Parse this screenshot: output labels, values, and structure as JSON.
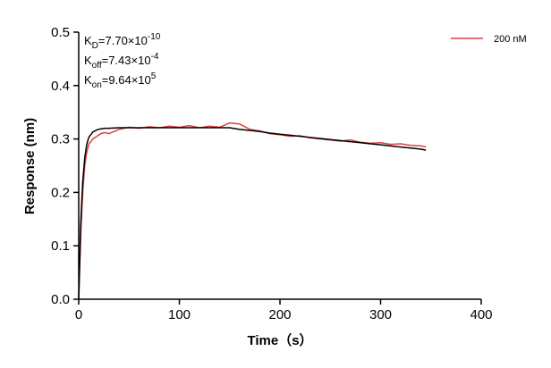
{
  "chart_data": {
    "type": "line",
    "x_label": "Time（s）",
    "y_label": "Response (nm)",
    "xlim": [
      0,
      400
    ],
    "ylim": [
      0,
      0.5
    ],
    "xticks": [
      0,
      100,
      200,
      300,
      400
    ],
    "yticks": [
      {
        "value": 0,
        "label": "0.0"
      },
      0.1,
      0.2,
      0.3,
      0.4,
      0.5
    ],
    "legend": "top-right",
    "annotations": [
      {
        "base": "K",
        "sub": "D",
        "text": "=7.70×10",
        "sup": "-10"
      },
      {
        "base": "K",
        "sub": "off",
        "text": "=7.43×10",
        "sup": "-4"
      },
      {
        "base": "K",
        "sub": "on",
        "text": "=9.64×10",
        "sup": "5"
      }
    ],
    "x": [
      0,
      2,
      4,
      6,
      8,
      10,
      14,
      18,
      22,
      26,
      30,
      40,
      50,
      60,
      70,
      80,
      90,
      100,
      110,
      120,
      130,
      140,
      150,
      160,
      170,
      180,
      190,
      200,
      210,
      220,
      230,
      240,
      250,
      260,
      270,
      280,
      290,
      300,
      310,
      320,
      330,
      340,
      345
    ],
    "series": [
      {
        "name": "200 nM",
        "color": "#d9413f",
        "values": [
          0,
          0.12,
          0.2,
          0.25,
          0.275,
          0.29,
          0.3,
          0.305,
          0.31,
          0.312,
          0.31,
          0.318,
          0.322,
          0.32,
          0.323,
          0.321,
          0.324,
          0.322,
          0.325,
          0.321,
          0.324,
          0.322,
          0.33,
          0.328,
          0.318,
          0.315,
          0.31,
          0.308,
          0.305,
          0.306,
          0.302,
          0.3,
          0.298,
          0.296,
          0.298,
          0.294,
          0.292,
          0.293,
          0.29,
          0.291,
          0.288,
          0.287,
          0.285
        ]
      },
      {
        "color": "#000000",
        "values": [
          0,
          0.14,
          0.22,
          0.265,
          0.29,
          0.303,
          0.313,
          0.317,
          0.319,
          0.32,
          0.32,
          0.321,
          0.321,
          0.321,
          0.321,
          0.321,
          0.321,
          0.321,
          0.321,
          0.321,
          0.321,
          0.321,
          0.321,
          0.318,
          0.316,
          0.314,
          0.311,
          0.309,
          0.307,
          0.305,
          0.303,
          0.301,
          0.299,
          0.297,
          0.295,
          0.293,
          0.291,
          0.289,
          0.287,
          0.285,
          0.283,
          0.281,
          0.279
        ]
      }
    ]
  }
}
